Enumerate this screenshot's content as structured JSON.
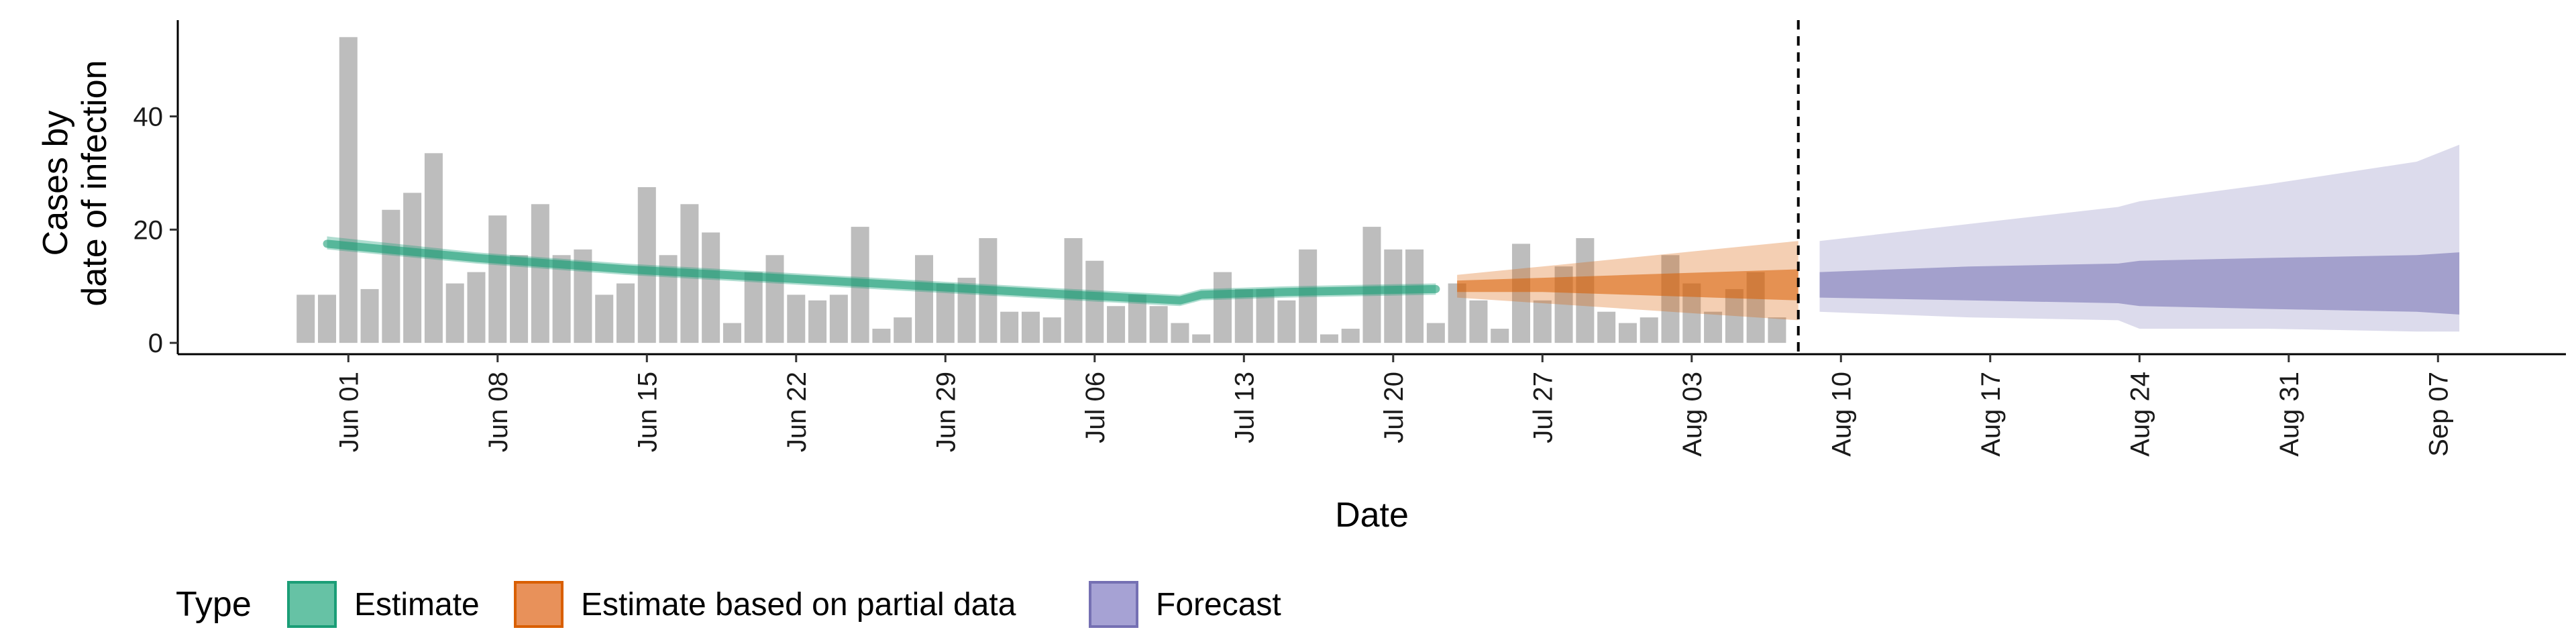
{
  "chart_data": {
    "type": "bar",
    "xlabel": "Date",
    "ylabel_lines": [
      "Cases by",
      "date of infection"
    ],
    "ylim": [
      -2,
      57
    ],
    "yticks": [
      0,
      20,
      40
    ],
    "start_date": "2020-05-30",
    "xlim": [
      "2020-05-24",
      "2020-09-13"
    ],
    "xticks": [
      "Jun 01",
      "Jun 08",
      "Jun 15",
      "Jun 22",
      "Jun 29",
      "Jul 06",
      "Jul 13",
      "Jul 20",
      "Jul 27",
      "Aug 03",
      "Aug 10",
      "Aug 17",
      "Aug 24",
      "Aug 31",
      "Sep 07"
    ],
    "xtick_dates": [
      "2020-06-01",
      "2020-06-08",
      "2020-06-15",
      "2020-06-22",
      "2020-06-29",
      "2020-07-06",
      "2020-07-13",
      "2020-07-20",
      "2020-07-27",
      "2020-08-03",
      "2020-08-10",
      "2020-08-17",
      "2020-08-24",
      "2020-08-31",
      "2020-09-07"
    ],
    "bars": [
      8.5,
      8.5,
      54,
      9.5,
      23.5,
      26.5,
      33.5,
      10.5,
      12.5,
      22.5,
      15.5,
      24.5,
      15.5,
      16.5,
      8.5,
      10.5,
      27.5,
      15.5,
      24.5,
      19.5,
      3.5,
      12.5,
      15.5,
      8.5,
      7.5,
      8.5,
      20.5,
      2.5,
      4.5,
      15.5,
      10.5,
      11.5,
      18.5,
      5.5,
      5.5,
      4.5,
      18.5,
      14.5,
      6.5,
      8.5,
      6.5,
      3.5,
      1.5,
      12.5,
      9.5,
      9.5,
      7.5,
      16.5,
      1.5,
      2.5,
      20.5,
      16.5,
      16.5,
      3.5,
      10.5,
      7.5,
      2.5,
      17.5,
      7.5,
      13.5,
      18.5,
      5.5,
      3.5,
      4.5,
      15.5,
      10.5,
      5.5,
      9.5,
      12.5,
      4.5
    ],
    "forecast_line_date": "2020-08-08",
    "series": [
      {
        "name": "Estimate",
        "color": "#1b9e77",
        "x": [
          "2020-05-31",
          "2020-06-07",
          "2020-06-14",
          "2020-06-21",
          "2020-06-28",
          "2020-07-05",
          "2020-07-10",
          "2020-07-11",
          "2020-07-15",
          "2020-07-22"
        ],
        "median": [
          17.5,
          15,
          13,
          11.5,
          10,
          8.5,
          7.5,
          8.5,
          9,
          9.5
        ],
        "lower": [
          16.5,
          14,
          12,
          10.5,
          9,
          7.5,
          6.5,
          7.5,
          8,
          8.5
        ],
        "upper": [
          18.8,
          16,
          14,
          12.5,
          11,
          9.5,
          8.5,
          9.5,
          10,
          10.5
        ]
      },
      {
        "name": "Estimate based on partial data",
        "color": "#d95f02",
        "x": [
          "2020-07-23",
          "2020-07-27",
          "2020-07-31",
          "2020-08-04",
          "2020-08-08"
        ],
        "lower90": [
          8,
          7,
          6,
          5,
          4
        ],
        "lower50": [
          9,
          9,
          8.5,
          8,
          7.5
        ],
        "upper50": [
          11,
          11.5,
          12,
          12.5,
          13
        ],
        "upper90": [
          12,
          13.5,
          15,
          16.5,
          18
        ]
      },
      {
        "name": "Forecast",
        "color": "#7570b3",
        "x": [
          "2020-08-09",
          "2020-08-16",
          "2020-08-23",
          "2020-08-24",
          "2020-08-30",
          "2020-09-06",
          "2020-09-08"
        ],
        "lower90": [
          5.5,
          4.5,
          4,
          2.5,
          2.5,
          2,
          2
        ],
        "lower50": [
          8,
          7.5,
          7,
          6.5,
          6,
          5.5,
          5
        ],
        "upper50": [
          12.5,
          13.5,
          14,
          14.5,
          15,
          15.5,
          16
        ],
        "upper90": [
          18,
          21,
          24,
          25,
          28,
          32,
          35
        ]
      }
    ],
    "legend": {
      "title": "Type",
      "position": "bottom",
      "items": [
        {
          "label": "Estimate",
          "fill": "#66c2a5",
          "stroke": "#1b9e77"
        },
        {
          "label": "Estimate based on partial data",
          "fill": "#e8915a",
          "stroke": "#d95f02"
        },
        {
          "label": "Forecast",
          "fill": "#a6a2d4",
          "stroke": "#7570b3"
        }
      ]
    }
  }
}
